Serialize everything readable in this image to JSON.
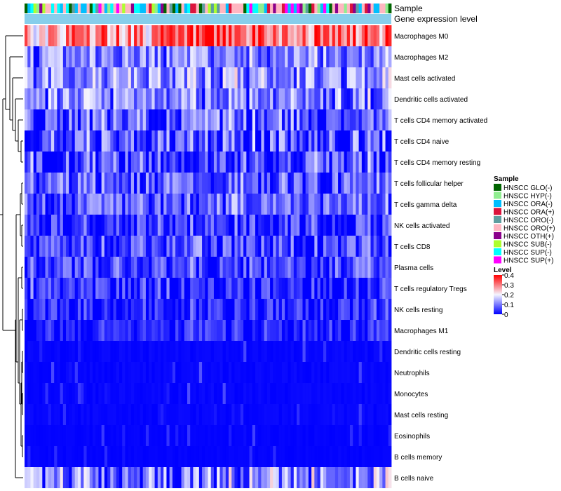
{
  "chart_data": {
    "type": "heatmap",
    "annotation_labels": {
      "sample": "Sample",
      "gene_expression": "Gene expression level"
    },
    "rows": [
      {
        "label": "Macrophages M0",
        "mean": 0.3,
        "spread": 0.12
      },
      {
        "label": "Macrophages M2",
        "mean": 0.11,
        "spread": 0.09
      },
      {
        "label": "Mast cells activated",
        "mean": 0.12,
        "spread": 0.1
      },
      {
        "label": "Dendritic cells activated",
        "mean": 0.1,
        "spread": 0.1
      },
      {
        "label": "T cells CD4 memory activated",
        "mean": 0.07,
        "spread": 0.1
      },
      {
        "label": "T cells CD4 naive",
        "mean": 0.06,
        "spread": 0.11
      },
      {
        "label": "T cells CD4 memory resting",
        "mean": 0.06,
        "spread": 0.1
      },
      {
        "label": "T cells follicular helper",
        "mean": 0.07,
        "spread": 0.09
      },
      {
        "label": "T cells gamma delta",
        "mean": 0.07,
        "spread": 0.09
      },
      {
        "label": "NK cells activated",
        "mean": 0.04,
        "spread": 0.08
      },
      {
        "label": "T cells CD8",
        "mean": 0.05,
        "spread": 0.09
      },
      {
        "label": "Plasma cells",
        "mean": 0.05,
        "spread": 0.08
      },
      {
        "label": "T cells regulatory  Tregs",
        "mean": 0.04,
        "spread": 0.08
      },
      {
        "label": "NK cells resting",
        "mean": 0.03,
        "spread": 0.07
      },
      {
        "label": "Macrophages M1",
        "mean": 0.02,
        "spread": 0.06
      },
      {
        "label": "Dendritic cells resting",
        "mean": 0.01,
        "spread": 0.05
      },
      {
        "label": "Neutrophils",
        "mean": 0.01,
        "spread": 0.05
      },
      {
        "label": "Monocytes",
        "mean": 0.01,
        "spread": 0.05
      },
      {
        "label": "Mast cells resting",
        "mean": 0.01,
        "spread": 0.05
      },
      {
        "label": "Eosinophils",
        "mean": 0.005,
        "spread": 0.04
      },
      {
        "label": "B cells memory",
        "mean": 0.005,
        "spread": 0.04
      },
      {
        "label": "B cells naive",
        "mean": 0.1,
        "spread": 0.12
      }
    ],
    "n_samples": 124,
    "value_range": [
      0,
      0.4
    ],
    "color_scale": {
      "low": "#0000ff",
      "mid": "#f5f5ff",
      "high": "#ff0000"
    },
    "sample_legend": {
      "title": "Sample",
      "entries": [
        {
          "label": "HNSCC GLO(-)",
          "color": "#006400"
        },
        {
          "label": "HNSCC HYP(-)",
          "color": "#90ee90"
        },
        {
          "label": "HNSCC ORA(-)",
          "color": "#00bfff"
        },
        {
          "label": "HNSCC ORA(+)",
          "color": "#dc143c"
        },
        {
          "label": "HNSCC ORO(-)",
          "color": "#5f9ea0"
        },
        {
          "label": "HNSCC ORO(+)",
          "color": "#ffb6c1"
        },
        {
          "label": "HNSCC OTH(+)",
          "color": "#8b008b"
        },
        {
          "label": "HNSCC SUB(-)",
          "color": "#adff2f"
        },
        {
          "label": "HNSCC SUP(-)",
          "color": "#00ffff"
        },
        {
          "label": "HNSCC SUP(+)",
          "color": "#ff00ff"
        }
      ]
    },
    "level_legend": {
      "title": "Level",
      "ticks": [
        "0.4",
        "0.3",
        "0.2",
        "0.1",
        "0"
      ],
      "tick_values": [
        0.4,
        0.3,
        0.2,
        0.1,
        0
      ]
    },
    "gene_expression_color": "#87ceeb"
  }
}
